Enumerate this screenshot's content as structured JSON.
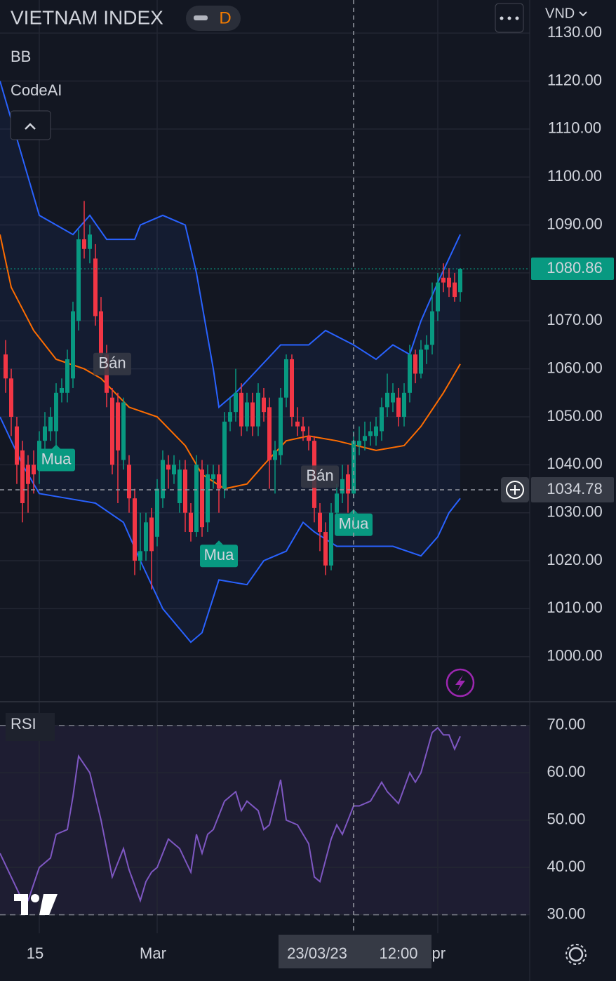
{
  "chart_data": {
    "type": "candlestick",
    "title": "VIETNAM INDEX",
    "interval": "D",
    "indicators": [
      "BB",
      "CodeAI"
    ],
    "currency": "VND",
    "up_color": "#089981",
    "down_color": "#f23645",
    "grid": true,
    "open": [
      1063,
      1058,
      1048,
      1043,
      1040,
      1040,
      1039,
      1045,
      1047,
      1047,
      1055,
      1055,
      1058,
      1070,
      1087,
      1085,
      1083,
      1072,
      1063,
      1054,
      1053,
      1041,
      1040,
      1033,
      1020,
      1022,
      1029,
      1025,
      1033,
      1040,
      1038,
      1032,
      1039,
      1030,
      1026,
      1039,
      1028,
      1037,
      1038,
      1035,
      1049,
      1051,
      1055,
      1048,
      1053,
      1048,
      1054,
      1052,
      1041,
      1042,
      1054,
      1062,
      1049,
      1048,
      1046,
      1045,
      1030,
      1026,
      1019,
      1030,
      1034,
      1038,
      1034,
      1044,
      1045,
      1046,
      1046,
      1047,
      1052,
      1053,
      1054,
      1050,
      1055,
      1063,
      1059,
      1064,
      1065,
      1072,
      1079,
      1079,
      1078,
      1076
    ],
    "high": [
      1066,
      1060,
      1050,
      1045,
      1042,
      1043,
      1047,
      1051,
      1052,
      1057,
      1058,
      1064,
      1074,
      1089,
      1095,
      1090,
      1086,
      1075,
      1065,
      1056,
      1055,
      1054,
      1042,
      1035,
      1030,
      1030,
      1031,
      1037,
      1043,
      1042,
      1042,
      1041,
      1041,
      1032,
      1042,
      1041,
      1040,
      1040,
      1040,
      1051,
      1054,
      1060,
      1057,
      1055,
      1055,
      1057,
      1056,
      1054,
      1045,
      1056,
      1063,
      1063,
      1052,
      1050,
      1048,
      1046,
      1032,
      1028,
      1032,
      1036,
      1040,
      1040,
      1047,
      1048,
      1049,
      1049,
      1050,
      1054,
      1059,
      1057,
      1056,
      1057,
      1065,
      1064,
      1066,
      1067,
      1078,
      1080,
      1082,
      1081,
      1080,
      1081
    ],
    "low": [
      1055,
      1046,
      1036,
      1028,
      1030,
      1034,
      1036,
      1043,
      1045,
      1044,
      1053,
      1053,
      1056,
      1068,
      1083,
      1082,
      1069,
      1060,
      1052,
      1038,
      1032,
      1039,
      1030,
      1017,
      1018,
      1020,
      1014,
      1023,
      1031,
      1035,
      1036,
      1030,
      1026,
      1024,
      1025,
      1025,
      1026,
      1035,
      1030,
      1033,
      1047,
      1049,
      1046,
      1047,
      1046,
      1046,
      1049,
      1035,
      1034,
      1040,
      1052,
      1048,
      1046,
      1045,
      1043,
      1028,
      1022,
      1017,
      1018,
      1028,
      1032,
      1030,
      1033,
      1042,
      1043,
      1044,
      1044,
      1045,
      1050,
      1051,
      1048,
      1048,
      1053,
      1057,
      1058,
      1061,
      1063,
      1070,
      1076,
      1075,
      1074,
      1074
    ],
    "close": [
      1058,
      1050,
      1040,
      1032,
      1036,
      1038,
      1045,
      1048,
      1050,
      1055,
      1056,
      1062,
      1072,
      1087,
      1085,
      1088,
      1071,
      1063,
      1055,
      1040,
      1043,
      1053,
      1033,
      1020,
      1022,
      1028,
      1022,
      1035,
      1041,
      1039,
      1040,
      1039,
      1030,
      1026,
      1040,
      1027,
      1038,
      1038,
      1035,
      1049,
      1051,
      1055,
      1048,
      1053,
      1048,
      1055,
      1051,
      1041,
      1043,
      1054,
      1062,
      1050,
      1048,
      1047,
      1045,
      1031,
      1026,
      1019,
      1030,
      1034,
      1037,
      1034,
      1045,
      1045,
      1046,
      1047,
      1048,
      1052,
      1055,
      1055,
      1050,
      1055,
      1063,
      1059,
      1064,
      1065,
      1072,
      1078,
      1078,
      1077,
      1075,
      1080.86
    ],
    "ylim": [
      990.6,
      1136.9
    ],
    "yticks": [
      {
        "value": 1000,
        "label": "1000.00"
      },
      {
        "value": 1010,
        "label": "1010.00"
      },
      {
        "value": 1020,
        "label": "1020.00"
      },
      {
        "value": 1030,
        "label": "1030.00"
      },
      {
        "value": 1040,
        "label": "1040.00"
      },
      {
        "value": 1050,
        "label": "1050.00"
      },
      {
        "value": 1060,
        "label": "1060.00"
      },
      {
        "value": 1070,
        "label": "1070.00"
      },
      {
        "value": 1080,
        "label": "1080.00"
      },
      {
        "value": 1090,
        "label": "1090.00"
      },
      {
        "value": 1100,
        "label": "1100.00"
      },
      {
        "value": 1110,
        "label": "1110.00"
      },
      {
        "value": 1120,
        "label": "1120.00"
      },
      {
        "value": 1130,
        "label": "1130.00"
      }
    ],
    "bands": {
      "upper": {
        "color": "#2962ff",
        "x": [
          -1,
          6,
          12,
          15,
          18,
          23,
          24,
          28,
          32,
          34,
          37,
          38,
          41,
          45,
          49,
          54,
          57,
          62,
          66,
          69,
          72,
          74,
          77,
          81
        ],
        "values": [
          1120,
          1092,
          1088,
          1092,
          1087,
          1087,
          1090,
          1092,
          1090,
          1080,
          1060,
          1052,
          1055,
          1060,
          1065,
          1065,
          1068,
          1065,
          1062,
          1065,
          1063,
          1070,
          1078,
          1088
        ]
      },
      "middle": {
        "color": "#ff6d00",
        "x": [
          -1,
          1,
          5,
          9,
          14,
          17,
          22,
          27,
          32,
          35,
          39,
          43,
          46,
          50,
          54,
          59,
          66,
          71,
          74,
          78,
          81
        ],
        "values": [
          1088,
          1077,
          1068,
          1062,
          1060,
          1058,
          1052,
          1050,
          1044,
          1038,
          1035,
          1036,
          1040,
          1045,
          1046,
          1045,
          1043,
          1044,
          1048,
          1055,
          1061
        ]
      },
      "lower": {
        "color": "#2962ff",
        "x": [
          -1,
          3,
          6,
          11,
          16,
          21,
          24,
          28,
          33,
          35,
          38,
          43,
          46,
          50,
          53,
          55,
          59,
          64,
          69,
          74,
          77,
          79,
          81
        ],
        "values": [
          1050,
          1040,
          1034,
          1033,
          1032,
          1028,
          1020,
          1010,
          1003,
          1005,
          1016,
          1015,
          1020,
          1022,
          1028,
          1026,
          1023,
          1023,
          1023,
          1021,
          1025,
          1030,
          1033
        ]
      }
    },
    "signals": [
      {
        "label": "Mua",
        "index": 9,
        "price": 1041
      },
      {
        "label": "Bán",
        "index": 19,
        "price": 1061
      },
      {
        "label": "Mua",
        "index": 38,
        "price": 1021
      },
      {
        "label": "Bán",
        "index": 56,
        "price": 1037.5
      },
      {
        "label": "Mua",
        "index": 62,
        "price": 1027.5
      }
    ],
    "last_price": 1080.86,
    "crosshair": {
      "index": 62,
      "price": 1034.78,
      "date": "23/03/23",
      "time": "12:00"
    },
    "x_labels": [
      {
        "index": 6,
        "label": "15"
      },
      {
        "index": 27,
        "label": "Mar"
      },
      {
        "index": 77,
        "label": "Apr"
      }
    ],
    "rsi": {
      "label": "RSI",
      "color": "#7e57c2",
      "x": [
        -1,
        1,
        3,
        4,
        6,
        8,
        9,
        11,
        12,
        13,
        15,
        17,
        19,
        21,
        22,
        24,
        25,
        26,
        27,
        29,
        30,
        31,
        33,
        34,
        35,
        36,
        37,
        39,
        41,
        42,
        43,
        45,
        46,
        47,
        49,
        50,
        52,
        54,
        55,
        56,
        58,
        59,
        60,
        62,
        63,
        65,
        67,
        68,
        70,
        72,
        73,
        74,
        76,
        77,
        78,
        79,
        80,
        81
      ],
      "values": [
        43,
        38,
        33,
        33,
        40,
        42,
        47,
        48,
        55,
        63.5,
        60,
        50,
        38,
        44,
        39.5,
        33,
        37,
        39,
        40,
        46,
        45,
        44,
        39,
        47,
        43,
        47,
        48,
        54,
        56,
        52,
        54,
        52,
        48,
        49,
        58.5,
        50,
        49,
        45,
        38,
        37,
        46,
        49,
        47,
        53,
        53,
        54,
        58,
        56,
        53.5,
        60,
        58,
        60,
        68.5,
        69.5,
        68,
        68,
        65,
        67.7
      ],
      "ylim": [
        26.1,
        75.0
      ],
      "yticks": [
        {
          "value": 30,
          "label": "30.00"
        },
        {
          "value": 40,
          "label": "40.00"
        },
        {
          "value": 50,
          "label": "50.00"
        },
        {
          "value": 60,
          "label": "60.00"
        },
        {
          "value": 70,
          "label": "70.00"
        }
      ]
    }
  }
}
